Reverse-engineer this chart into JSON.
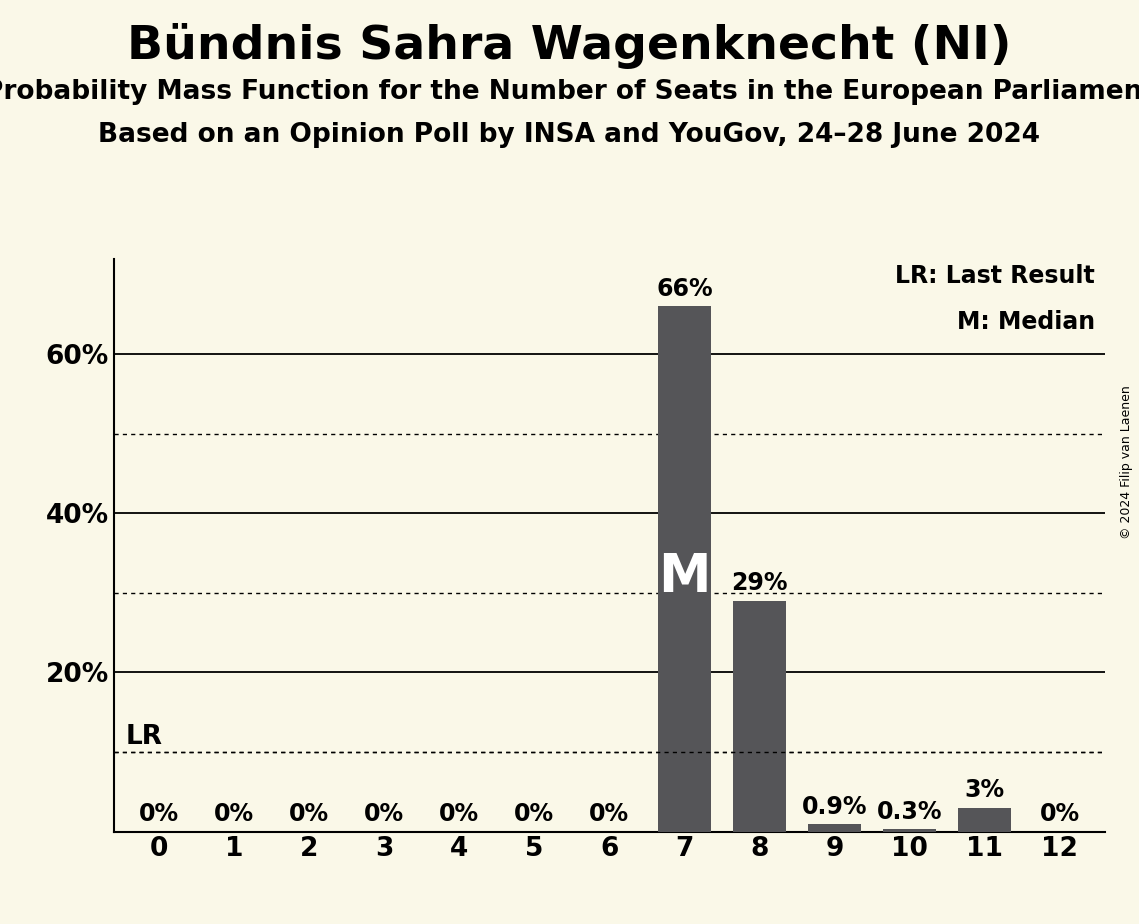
{
  "title": "Bündnis Sahra Wagenknecht (NI)",
  "subtitle1": "Probability Mass Function for the Number of Seats in the European Parliament",
  "subtitle2": "Based on an Opinion Poll by INSA and YouGov, 24–28 June 2024",
  "copyright": "© 2024 Filip van Laenen",
  "categories": [
    0,
    1,
    2,
    3,
    4,
    5,
    6,
    7,
    8,
    9,
    10,
    11,
    12
  ],
  "values": [
    0.0,
    0.0,
    0.0,
    0.0,
    0.0,
    0.0,
    0.0,
    0.66,
    0.29,
    0.009,
    0.003,
    0.03,
    0.0
  ],
  "bar_color": "#555558",
  "background_color": "#faf8e8",
  "ylim": [
    0,
    0.72
  ],
  "yticks": [
    0.0,
    0.2,
    0.4,
    0.6
  ],
  "ytick_labels": [
    "",
    "20%",
    "40%",
    "60%"
  ],
  "dotted_yticks": [
    0.1,
    0.3,
    0.5
  ],
  "lr_value": 0.1,
  "median_seat": 7,
  "bar_labels": [
    "0%",
    "0%",
    "0%",
    "0%",
    "0%",
    "0%",
    "0%",
    "66%",
    "29%",
    "0.9%",
    "0.3%",
    "3%",
    "0%"
  ],
  "legend_lr": "LR: Last Result",
  "legend_m": "M: Median",
  "title_fontsize": 34,
  "subtitle1_fontsize": 19,
  "subtitle2_fontsize": 19,
  "label_fontsize": 17,
  "tick_fontsize": 19,
  "bar_label_fontsize": 17,
  "median_fontsize": 38,
  "lr_fontsize": 19,
  "copyright_fontsize": 9
}
